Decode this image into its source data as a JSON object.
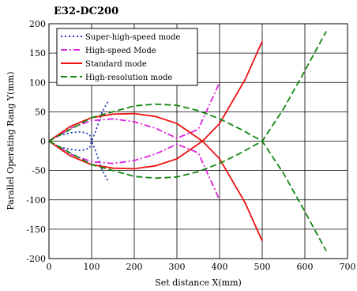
{
  "chart_data": {
    "type": "line",
    "title": "E32-DC200",
    "xlabel": "Set distance X(mm)",
    "ylabel": "Parallel Operating Rang Y(mm)",
    "xlim": [
      0,
      700
    ],
    "ylim": [
      -200,
      200
    ],
    "xticks": [
      0,
      100,
      200,
      300,
      400,
      500,
      600,
      700
    ],
    "yticks": [
      200,
      150,
      100,
      50,
      0,
      -50,
      -100,
      -150,
      -200
    ],
    "grid": true,
    "legend_position": "top-left",
    "series": [
      {
        "name": "Super-high-speed mode",
        "color": "#2233bb",
        "dash": "dotted",
        "x": [
          0,
          10,
          25,
          50,
          75,
          95,
          100,
          110,
          125,
          140
        ],
        "upper": [
          0,
          5,
          10,
          14,
          16,
          12,
          0,
          18,
          50,
          70
        ],
        "lower": [
          0,
          -5,
          -10,
          -14,
          -16,
          -12,
          0,
          -18,
          -50,
          -70
        ]
      },
      {
        "name": "High-speed Mode",
        "color": "#dd22dd",
        "dash": "dashdot",
        "x": [
          0,
          50,
          100,
          150,
          200,
          250,
          300,
          350,
          400
        ],
        "upper": [
          0,
          22,
          35,
          38,
          33,
          22,
          5,
          20,
          100
        ],
        "lower": [
          0,
          -22,
          -35,
          -38,
          -33,
          -22,
          -5,
          -20,
          -100
        ]
      },
      {
        "name": "Standard mode",
        "color": "#ee1111",
        "dash": "solid",
        "x": [
          0,
          50,
          100,
          150,
          200,
          250,
          300,
          350,
          360,
          400,
          460,
          500
        ],
        "upper": [
          0,
          25,
          40,
          46,
          47,
          42,
          30,
          5,
          0,
          30,
          105,
          170
        ],
        "lower": [
          0,
          -25,
          -40,
          -46,
          -47,
          -42,
          -30,
          -5,
          0,
          -30,
          -105,
          -170
        ]
      },
      {
        "name": "High-resolution mode",
        "color": "#118811",
        "dash": "dashed",
        "x": [
          0,
          100,
          200,
          250,
          300,
          350,
          400,
          450,
          500,
          550,
          600,
          650
        ],
        "upper": [
          0,
          40,
          60,
          63,
          61,
          52,
          38,
          20,
          0,
          55,
          120,
          187
        ],
        "lower": [
          0,
          -40,
          -60,
          -63,
          -61,
          -52,
          -38,
          -20,
          0,
          -55,
          -120,
          -187
        ]
      }
    ]
  }
}
